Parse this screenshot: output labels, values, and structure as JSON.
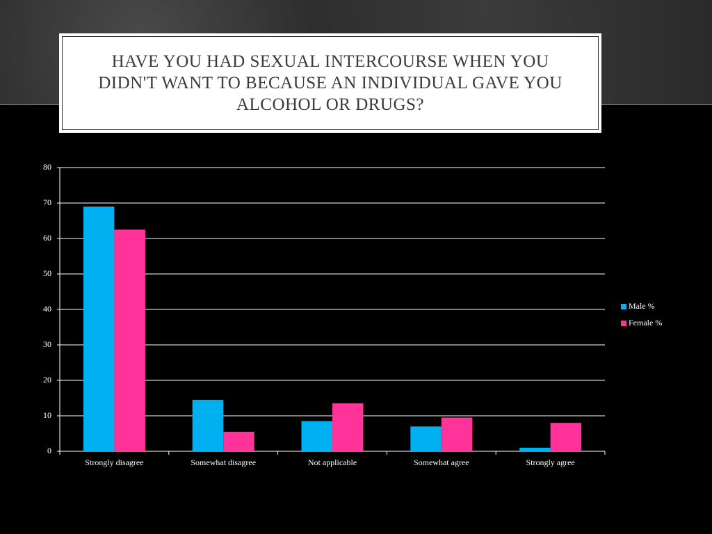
{
  "chart_data": {
    "type": "bar",
    "title": "Have you had sexual intercourse when you didn't want to because an individual gave you alcohol or drugs?",
    "categories": [
      "Strongly disagree",
      "Somewhat disagree",
      "Not applicable",
      "Somewhat agree",
      "Strongly agree"
    ],
    "series": [
      {
        "name": "Male %",
        "color": "#00b0f0",
        "values": [
          69,
          14.5,
          8.5,
          7,
          1
        ]
      },
      {
        "name": "Female %",
        "color": "#ff3399",
        "values": [
          62.5,
          5.5,
          13.5,
          9.5,
          8
        ]
      }
    ],
    "ylim": [
      0,
      80
    ],
    "yticks": [
      0,
      10,
      20,
      30,
      40,
      50,
      60,
      70,
      80
    ],
    "grid": true,
    "legend": "right"
  }
}
